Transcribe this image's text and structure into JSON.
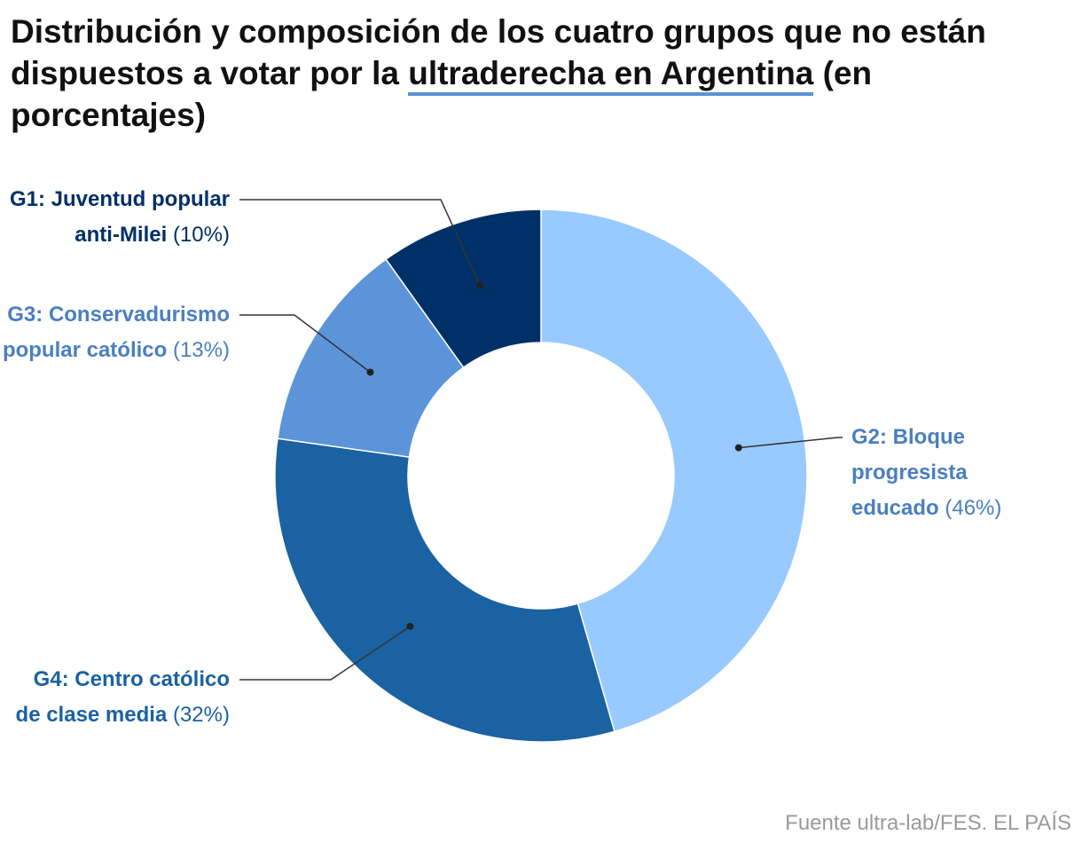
{
  "title": {
    "before": "Distribución y composición de los cuatro grupos que no están dispuestos a votar por la ",
    "highlight": "ultraderecha en Argentina",
    "after": " (en porcentajes)"
  },
  "source": "Fuente ultra-lab/FES. EL PAÍS",
  "chart_data": {
    "type": "pie",
    "variant": "donut",
    "start_angle_deg": 0,
    "direction": "clockwise",
    "slices": [
      {
        "id": "g2",
        "name": "G2: Bloque progresista educado",
        "label_name": "G2: Bloque progresista educado",
        "label_pct": "(46%)",
        "value": 46,
        "color": "#99caff",
        "label_color": "#4a7fbf"
      },
      {
        "id": "g4",
        "name": "G4: Centro católico de clase media",
        "label_name": "G4: Centro católico de clase media",
        "label_pct": "(32%)",
        "value": 32,
        "color": "#1a62a2",
        "label_color": "#1a62a2"
      },
      {
        "id": "g3",
        "name": "G3: Conservadurismo popular católico",
        "label_name": "G3: Conservadurismo popular católico",
        "label_pct": "(13%)",
        "value": 13,
        "color": "#5b94d9",
        "label_color": "#4a7fbf"
      },
      {
        "id": "g1",
        "name": "G1: Juventud popular anti-Milei",
        "label_name": "G1: Juventud popular anti-Milei",
        "label_pct": "(10%)",
        "value": 10,
        "color": "#003068",
        "label_color": "#003068"
      }
    ]
  }
}
